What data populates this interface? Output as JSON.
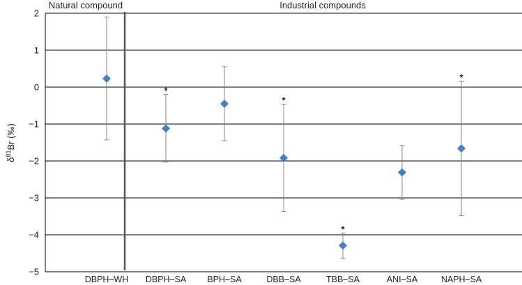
{
  "chart_data": {
    "type": "scatter",
    "title": "",
    "xlabel": "",
    "ylabel": {
      "delta": "δ",
      "sup": "81",
      "rest": "Br (‰)"
    },
    "ylim": [
      -5,
      2
    ],
    "yticks": [
      2,
      1,
      0,
      -1,
      -2,
      -3,
      -4,
      -5
    ],
    "ytick_labels": [
      "2",
      "1",
      "0",
      "−1",
      "−2",
      "−3",
      "−4",
      "−5"
    ],
    "grid": true,
    "group_labels": [
      "Natural compound",
      "Industrial compounds"
    ],
    "categories": [
      "DBPH–WH",
      "DBPH–SA",
      "BPH–SA",
      "DBB–SA",
      "TBB–SA",
      "ANI–SA",
      "NAPH–SA"
    ],
    "series": [
      {
        "values": [
          0.23,
          -1.12,
          -0.45,
          -1.92,
          -4.29,
          -2.31,
          -1.66
        ],
        "error_upper": [
          1.9,
          -0.2,
          0.55,
          -0.46,
          -3.95,
          -1.58,
          0.16
        ],
        "error_lower": [
          -1.43,
          -2.03,
          -1.45,
          -3.37,
          -4.64,
          -3.04,
          -3.48
        ],
        "significance": [
          "",
          "*",
          "",
          "*",
          "*",
          "",
          "*"
        ],
        "color": "#4a7fc1"
      }
    ],
    "colors": {
      "marker": "#4a7fc1",
      "error_bar": "#888888",
      "grid": "#000000",
      "divider": "#555555"
    }
  }
}
